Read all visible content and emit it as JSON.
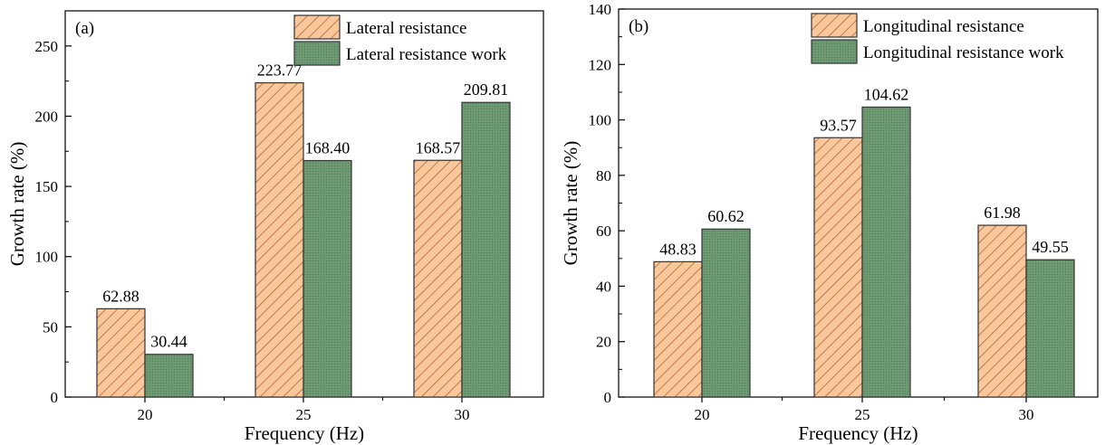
{
  "chart_data": [
    {
      "type": "bar",
      "panel_label": "(a)",
      "categories": [
        "20",
        "25",
        "30"
      ],
      "series": [
        {
          "name": "Lateral resistance",
          "values": [
            62.88,
            223.77,
            168.57
          ],
          "labels": [
            "62.88",
            "223.77",
            "168.57"
          ],
          "color": "#f9c79a",
          "pattern": "hatch"
        },
        {
          "name": "Lateral resistance work",
          "values": [
            30.44,
            168.4,
            209.81
          ],
          "labels": [
            "30.44",
            "168.40",
            "209.81"
          ],
          "color": "#6e9a73",
          "pattern": "dots"
        }
      ],
      "xlabel": "Frequency (Hz)",
      "ylabel": "Growth rate (%)",
      "ylim": [
        0,
        275
      ],
      "yticks": [
        0,
        50,
        100,
        150,
        200,
        250
      ],
      "grid": false,
      "legend": "top-right"
    },
    {
      "type": "bar",
      "panel_label": "(b)",
      "categories": [
        "20",
        "25",
        "30"
      ],
      "series": [
        {
          "name": "Longitudinal resistance",
          "values": [
            48.83,
            93.57,
            61.98
          ],
          "labels": [
            "48.83",
            "93.57",
            "61.98"
          ],
          "color": "#f9c79a",
          "pattern": "hatch"
        },
        {
          "name": "Longitudinal resistance work",
          "values": [
            60.62,
            104.62,
            49.55
          ],
          "labels": [
            "60.62",
            "104.62",
            "49.55"
          ],
          "color": "#6e9a73",
          "pattern": "dots"
        }
      ],
      "xlabel": "Frequency (Hz)",
      "ylabel": "Growth rate (%)",
      "ylim": [
        0,
        140
      ],
      "yticks": [
        0,
        20,
        40,
        60,
        80,
        100,
        120,
        140
      ],
      "grid": false,
      "legend": "top-right"
    }
  ]
}
